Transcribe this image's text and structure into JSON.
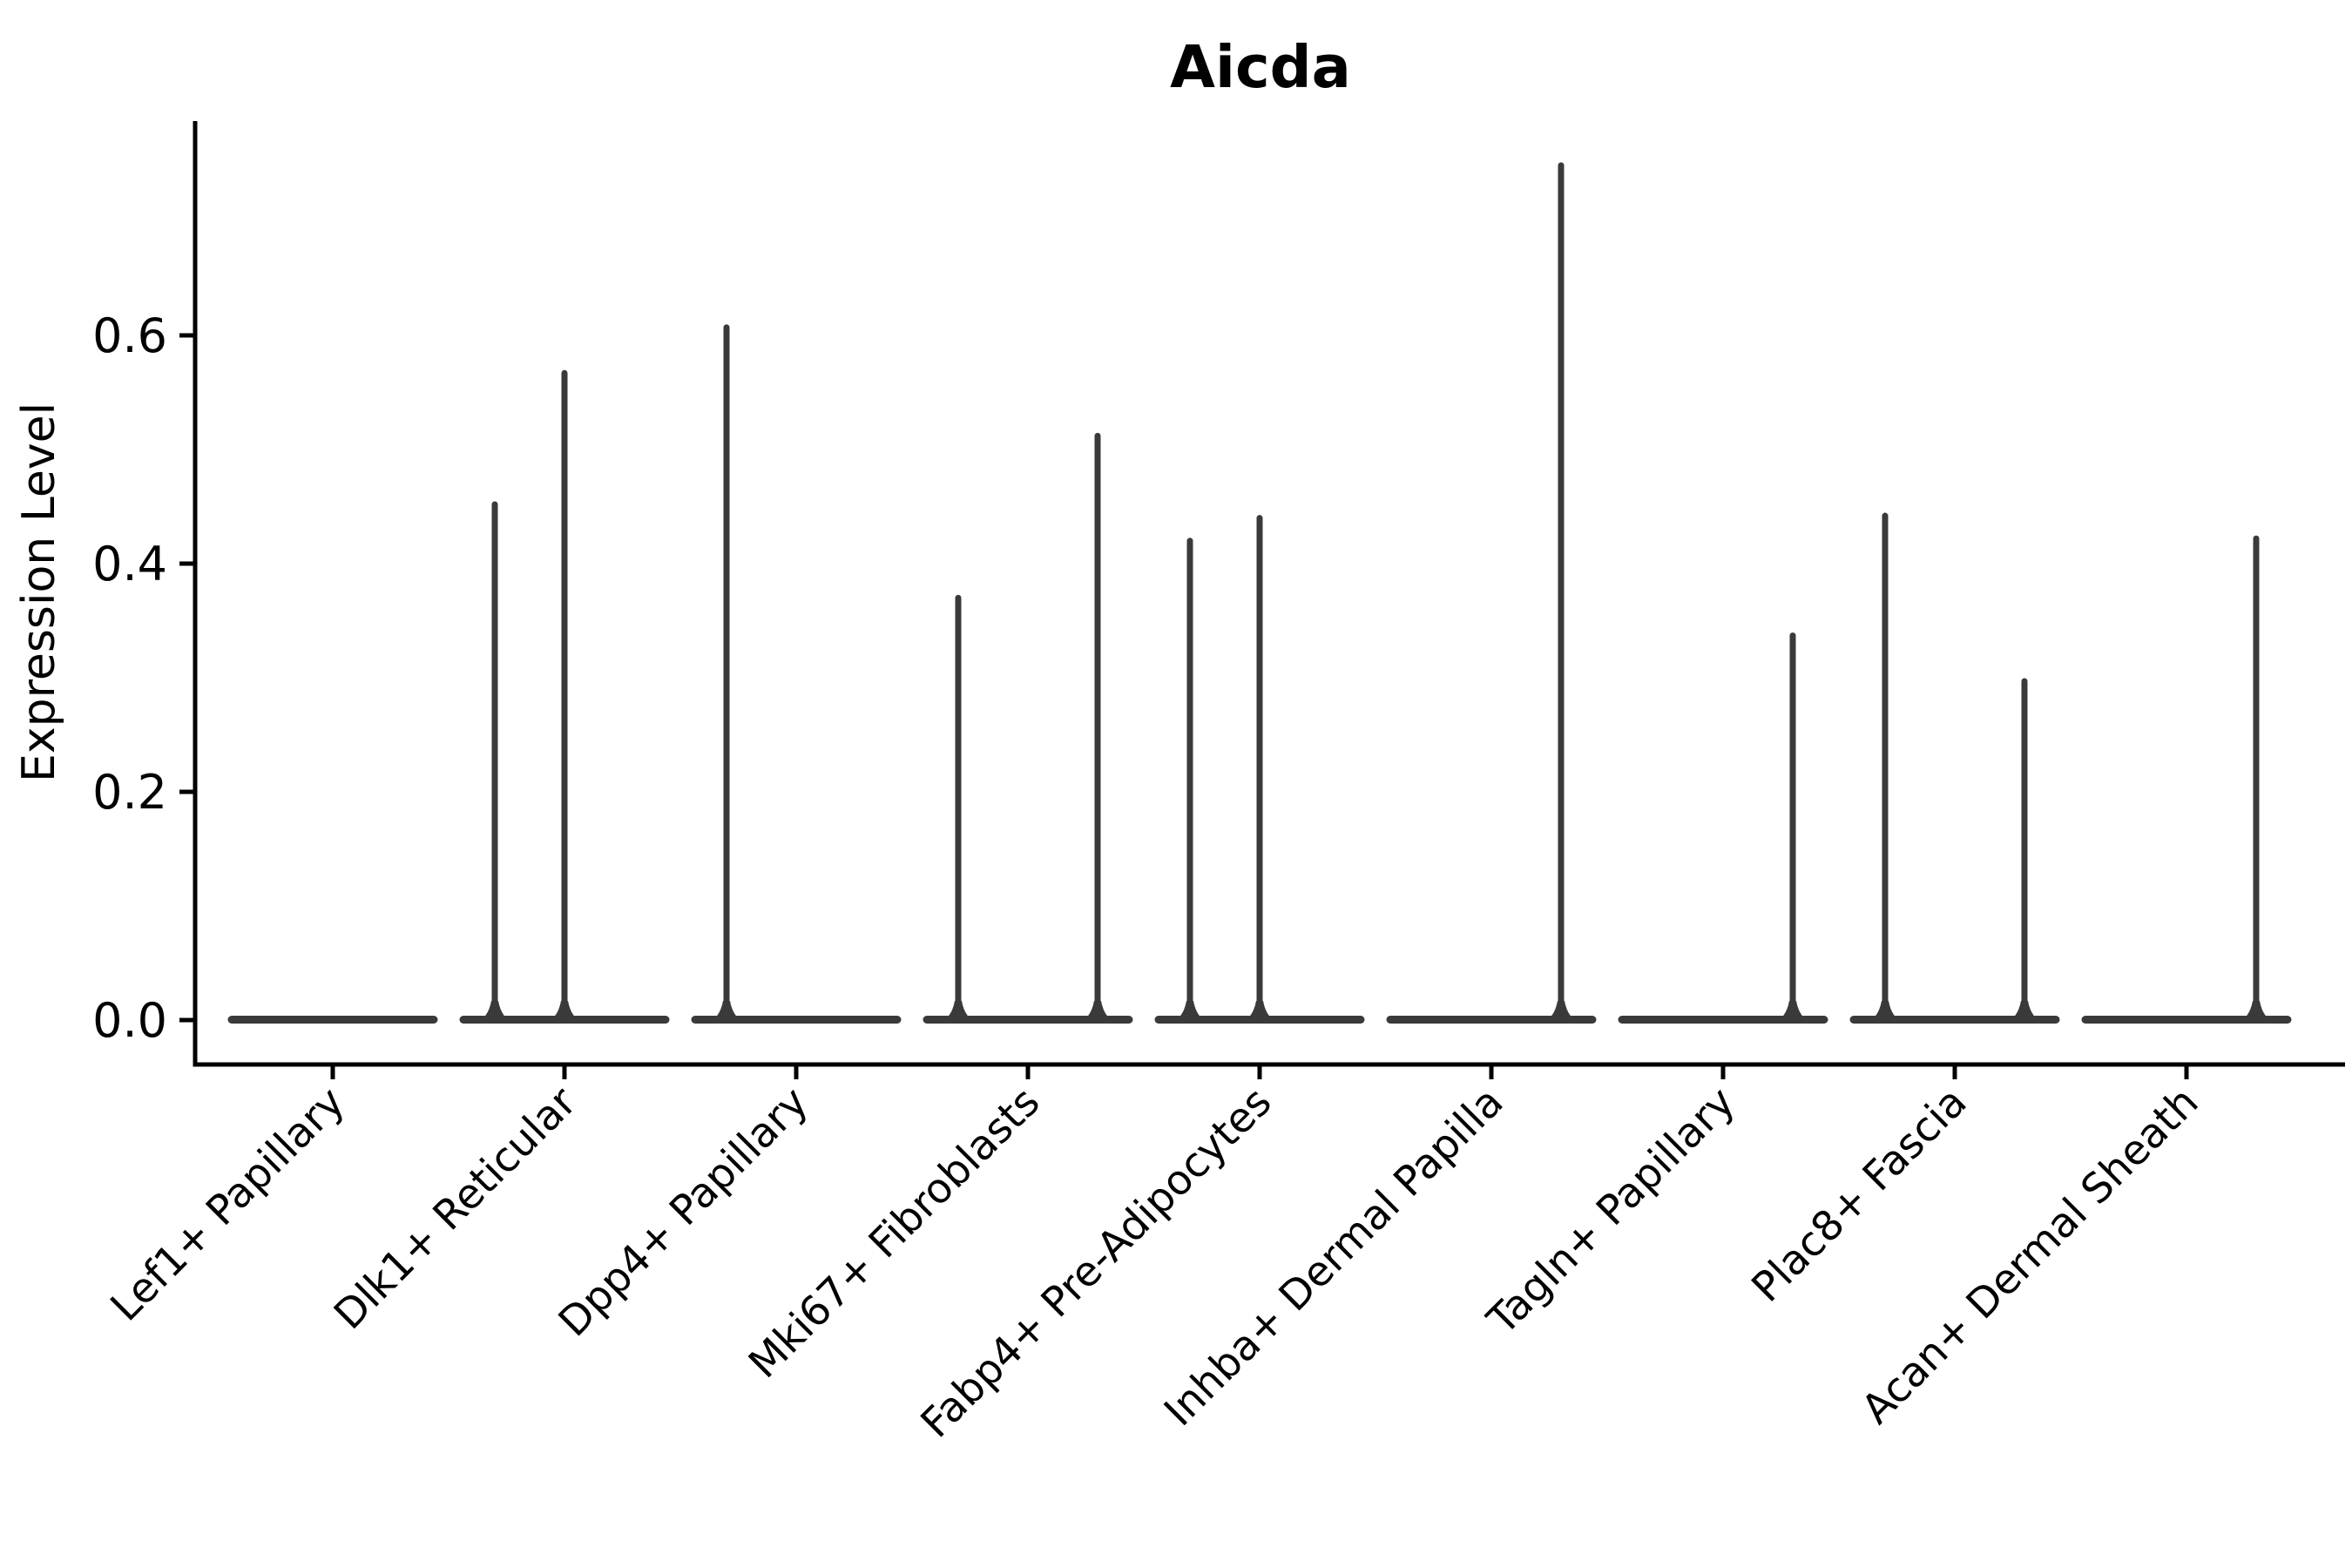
{
  "figure": {
    "background": "#ffffff",
    "axis_color": "#000000",
    "violin_color": "#3a3a3a"
  },
  "chart_data": {
    "type": "violin",
    "title": "Aicda",
    "xlabel": "",
    "ylabel": "Expression Level",
    "grid": false,
    "legend": null,
    "ylim": [
      -0.0375,
      0.7875
    ],
    "yticks": [
      {
        "value": 0.0,
        "label": "0.0"
      },
      {
        "value": 0.2,
        "label": "0.2"
      },
      {
        "value": 0.4,
        "label": "0.4"
      },
      {
        "value": 0.6,
        "label": "0.6"
      }
    ],
    "categories": [
      "Lef1+ Papillary",
      "Dlk1+ Reticular",
      "Dpp4+ Papillary",
      "Mki67+ Fibroblasts",
      "Fabp4+ Pre-Adipocytes",
      "Inhba+ Dermal Papilla",
      "Tagln+ Papillary",
      "Plac8+ Fascia",
      "Acan+ Dermal Sheath"
    ],
    "series": [
      {
        "name": "Lef1+ Papillary",
        "baseline_value": 0.0,
        "spikes": []
      },
      {
        "name": "Dlk1+ Reticular",
        "baseline_value": 0.0,
        "spikes": [
          {
            "slot": -1,
            "max": 0.455
          },
          {
            "slot": 0,
            "max": 0.57
          }
        ]
      },
      {
        "name": "Dpp4+ Papillary",
        "baseline_value": 0.0,
        "spikes": [
          {
            "slot": -1,
            "max": 0.61
          }
        ]
      },
      {
        "name": "Mki67+ Fibroblasts",
        "baseline_value": 0.0,
        "spikes": [
          {
            "slot": -1,
            "max": 0.373
          },
          {
            "slot": 1,
            "max": 0.515
          }
        ]
      },
      {
        "name": "Fabp4+ Pre-Adipocytes",
        "baseline_value": 0.0,
        "spikes": [
          {
            "slot": -1,
            "max": 0.423
          },
          {
            "slot": 0,
            "max": 0.443
          }
        ]
      },
      {
        "name": "Inhba+ Dermal Papilla",
        "baseline_value": 0.0,
        "spikes": [
          {
            "slot": 1,
            "max": 0.752
          }
        ]
      },
      {
        "name": "Tagln+ Papillary",
        "baseline_value": 0.0,
        "spikes": [
          {
            "slot": 1,
            "max": 0.34
          }
        ]
      },
      {
        "name": "Plac8+ Fascia",
        "baseline_value": 0.0,
        "spikes": [
          {
            "slot": -1,
            "max": 0.445
          },
          {
            "slot": 1,
            "max": 0.3
          }
        ]
      },
      {
        "name": "Acan+ Dermal Sheath",
        "baseline_value": 0.0,
        "spikes": [
          {
            "slot": 1,
            "max": 0.425
          }
        ]
      }
    ]
  }
}
